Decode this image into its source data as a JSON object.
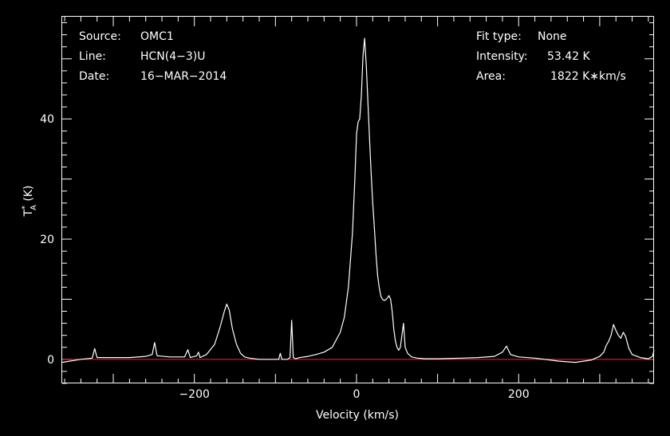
{
  "header": {
    "source_label": "Source:",
    "source_value": "OMC1",
    "line_label": "Line:",
    "line_value": "HCN(4−3)U",
    "date_label": "Date:",
    "date_value": "16−MAR−2014",
    "fit_label": "Fit type:",
    "fit_value": "None",
    "intensity_label": "Intensity:",
    "intensity_value": "53.42 K",
    "area_label": "Area:",
    "area_value": "1822 K∗km/s"
  },
  "colors": {
    "background": "#000000",
    "spectrum": "#ffffff",
    "baseline": "#ff2020",
    "axes": "#ffffff"
  },
  "chart_data": {
    "type": "line",
    "xlabel": "Velocity (km/s)",
    "ylabel_main": "T",
    "ylabel_sup": "*",
    "ylabel_sub": "A",
    "ylabel_unit": " (K)",
    "xlim": [
      -363,
      367
    ],
    "ylim": [
      -4,
      57
    ],
    "xticks": [
      -200,
      0,
      200
    ],
    "xtick_labels": [
      "−200",
      "0",
      "200"
    ],
    "yticks": [
      0,
      20,
      40
    ],
    "ytick_labels": [
      "0",
      "20",
      "40"
    ],
    "baseline_y": 0,
    "x": [
      -363,
      -340,
      -326,
      -323,
      -320,
      -300,
      -280,
      -260,
      -252,
      -249,
      -246,
      -230,
      -212,
      -208,
      -205,
      -197,
      -195,
      -193,
      -185,
      -175,
      -168,
      -163,
      -160,
      -157,
      -153,
      -148,
      -143,
      -138,
      -132,
      -120,
      -105,
      -96,
      -94,
      -92,
      -85,
      -82,
      -80,
      -78,
      -75,
      -70,
      -60,
      -50,
      -40,
      -30,
      -20,
      -15,
      -10,
      -5,
      -2,
      0,
      2,
      4,
      6,
      8,
      10,
      12,
      14,
      16,
      18,
      20,
      22,
      24,
      26,
      28,
      30,
      32,
      34,
      36,
      38,
      40,
      42,
      44,
      46,
      48,
      50,
      52,
      54,
      56,
      58,
      60,
      63,
      68,
      75,
      85,
      100,
      130,
      150,
      170,
      180,
      185,
      190,
      200,
      220,
      250,
      270,
      290,
      300,
      305,
      308,
      311,
      314,
      317,
      320,
      323,
      326,
      329,
      332,
      336,
      340,
      350,
      360,
      365,
      367
    ],
    "y": [
      -0.5,
      0,
      0.2,
      1.8,
      0.3,
      0.3,
      0.3,
      0.5,
      0.8,
      2.8,
      0.6,
      0.4,
      0.4,
      1.6,
      0.3,
      0.6,
      1.2,
      0.3,
      0.8,
      2.5,
      5.5,
      8.0,
      9.2,
      8.2,
      5.0,
      2.5,
      1.0,
      0.4,
      0.2,
      0.0,
      0.0,
      0.0,
      1.0,
      0.0,
      0.0,
      0.3,
      6.5,
      0.3,
      0.1,
      0.3,
      0.5,
      0.8,
      1.2,
      2.0,
      4.5,
      7.0,
      12.0,
      21.0,
      30.0,
      37.5,
      39.5,
      40.0,
      44.0,
      50.5,
      53.4,
      49.0,
      43.0,
      37.0,
      31.0,
      26.0,
      22.0,
      17.5,
      14.0,
      12.0,
      10.5,
      10.0,
      9.8,
      9.9,
      10.2,
      10.6,
      10.0,
      8.0,
      5.0,
      3.0,
      2.0,
      1.5,
      2.0,
      4.0,
      6.0,
      2.0,
      1.0,
      0.4,
      0.2,
      0.1,
      0.1,
      0.2,
      0.3,
      0.5,
      1.2,
      2.2,
      0.8,
      0.4,
      0.2,
      -0.3,
      -0.5,
      -0.1,
      0.5,
      1.2,
      2.3,
      3.0,
      4.0,
      5.8,
      4.8,
      4.0,
      3.5,
      4.5,
      3.8,
      1.8,
      0.8,
      0.3,
      0.1,
      0.5,
      1.5
    ]
  }
}
